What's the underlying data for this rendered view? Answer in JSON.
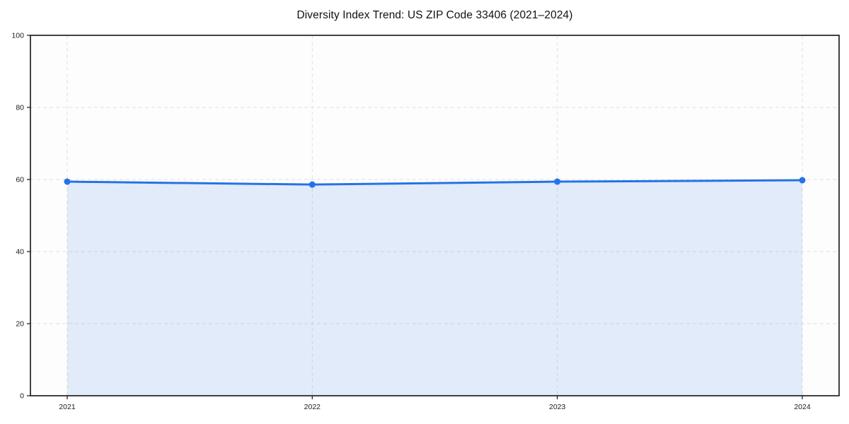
{
  "chart_data": {
    "type": "line",
    "title": "Diversity Index Trend: US ZIP Code 33406 (2021–2024)",
    "x": [
      "2021",
      "2022",
      "2023",
      "2024"
    ],
    "series": [
      {
        "name": "Diversity Index",
        "values": [
          59.4,
          58.6,
          59.4,
          59.8
        ]
      }
    ],
    "xlabel": "",
    "ylabel": "",
    "ylim": [
      0,
      100
    ],
    "yticks": [
      0,
      20,
      40,
      60,
      80,
      100
    ],
    "grid": true,
    "grid_style": "dashed",
    "legend_position": "none",
    "area_fill": true,
    "marker": "circle",
    "colors": {
      "line": "#2473e8",
      "marker": "#2473e8",
      "area_fill": "rgba(36, 115, 232, 0.13)",
      "grid": "#e0e0e0",
      "spine": "#141414",
      "plot_background": "#fdfdfd",
      "figure_background": "#ffffff",
      "text": "#1a1a1a"
    }
  }
}
